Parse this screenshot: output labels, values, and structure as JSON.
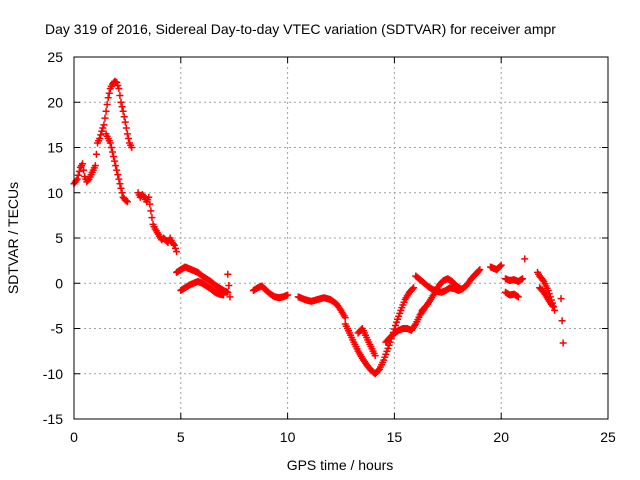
{
  "chart_data": {
    "type": "scatter",
    "title": "Day 319 of 2016, Sidereal Day-to-day VTEC variation (SDTVAR) for receiver ampr",
    "xlabel": "GPS time / hours",
    "ylabel": "SDTVAR / TECUs",
    "xlim": [
      0,
      25
    ],
    "ylim": [
      -15,
      25
    ],
    "xticks": [
      "0",
      "5",
      "10",
      "15",
      "20",
      "25"
    ],
    "yticks": [
      "-15",
      "-10",
      "-5",
      "0",
      "5",
      "10",
      "15",
      "20",
      "25"
    ],
    "grid": true,
    "marker": "+",
    "marker_color": "#ff0000",
    "series": [
      {
        "x": [
          0.0,
          0.15,
          0.3,
          0.4,
          0.5,
          0.6,
          0.7,
          0.8,
          0.9,
          1.0,
          1.1,
          1.2,
          1.3,
          1.4,
          1.5,
          1.6,
          1.7,
          1.8,
          1.9,
          2.0,
          2.1,
          2.2,
          2.3,
          2.4,
          2.5,
          2.6,
          2.7
        ],
        "y": [
          11.0,
          11.5,
          12.8,
          13.2,
          11.8,
          11.2,
          11.5,
          12.0,
          12.5,
          13.0,
          15.5,
          16.0,
          16.8,
          17.5,
          19.0,
          20.5,
          21.5,
          22.0,
          22.3,
          22.2,
          21.5,
          20.0,
          19.0,
          17.8,
          16.5,
          15.5,
          15.0
        ]
      },
      {
        "x": [
          1.5,
          1.6,
          1.7,
          1.8,
          1.9,
          2.0,
          2.1,
          2.2,
          2.3,
          2.4,
          2.5
        ],
        "y": [
          16.5,
          16.0,
          15.5,
          14.5,
          13.5,
          12.5,
          11.5,
          10.5,
          9.5,
          9.2,
          9.0
        ]
      },
      {
        "x": [
          3.0,
          3.1,
          3.2,
          3.3,
          3.4,
          3.5,
          3.7,
          3.8,
          4.0,
          4.1,
          4.2,
          4.4,
          4.5,
          4.6,
          4.7,
          4.8
        ],
        "y": [
          10.0,
          9.5,
          9.8,
          9.5,
          9.0,
          9.5,
          6.5,
          6.0,
          5.2,
          4.8,
          5.0,
          4.5,
          5.0,
          4.5,
          4.2,
          3.5
        ]
      },
      {
        "x": [
          4.8,
          5.0,
          5.2,
          5.4,
          5.6,
          5.8,
          6.0,
          6.2,
          6.4,
          6.6,
          6.8,
          7.0,
          7.2
        ],
        "y": [
          1.2,
          1.5,
          1.8,
          1.6,
          1.4,
          1.2,
          0.8,
          0.5,
          0.2,
          -0.2,
          -0.5,
          -0.8,
          -1.0
        ]
      },
      {
        "x": [
          5.0,
          5.2,
          5.4,
          5.6,
          5.8,
          6.0,
          6.2,
          6.4,
          6.6,
          6.8,
          7.0
        ],
        "y": [
          -0.8,
          -0.5,
          -0.2,
          0.0,
          0.2,
          0.0,
          -0.3,
          -0.6,
          -1.0,
          -1.2,
          -1.3
        ]
      },
      {
        "x": [
          7.2,
          7.3
        ],
        "y": [
          1.0,
          -1.5
        ]
      },
      {
        "x": [
          8.4,
          8.6,
          8.8,
          9.0,
          9.2,
          9.4,
          9.6,
          9.8,
          10.0
        ],
        "y": [
          -0.8,
          -0.5,
          -0.3,
          -0.8,
          -1.2,
          -1.5,
          -1.6,
          -1.5,
          -1.3
        ]
      },
      {
        "x": [
          10.5,
          10.8,
          11.1,
          11.4,
          11.7,
          12.0,
          12.3,
          12.5,
          12.7
        ],
        "y": [
          -1.5,
          -1.8,
          -2.0,
          -1.8,
          -1.6,
          -1.8,
          -2.3,
          -3.0,
          -3.8
        ]
      },
      {
        "x": [
          12.7,
          12.9,
          13.1,
          13.3,
          13.5,
          13.7,
          13.9,
          14.1,
          14.3,
          14.5,
          14.7,
          14.9,
          15.1,
          15.3,
          15.5,
          15.7,
          15.9
        ],
        "y": [
          -4.5,
          -5.5,
          -6.5,
          -7.5,
          -8.3,
          -9.0,
          -9.6,
          -10.0,
          -9.5,
          -8.5,
          -7.2,
          -5.8,
          -4.3,
          -3.0,
          -1.8,
          -1.0,
          -0.5
        ]
      },
      {
        "x": [
          13.3,
          13.5,
          13.7,
          13.9,
          14.1
        ],
        "y": [
          -5.5,
          -5.0,
          -6.0,
          -7.0,
          -8.0
        ]
      },
      {
        "x": [
          14.6,
          14.8,
          15.0,
          15.2,
          15.4,
          15.6,
          15.8,
          16.0,
          16.2,
          16.4
        ],
        "y": [
          -6.5,
          -6.0,
          -5.5,
          -5.2,
          -5.0,
          -5.0,
          -5.2,
          -4.5,
          -3.5,
          -2.8
        ]
      },
      {
        "x": [
          16.0,
          16.2,
          16.4,
          16.6,
          16.8,
          17.0,
          17.2,
          17.4,
          17.6,
          17.8,
          18.0,
          18.2,
          18.4,
          18.6,
          18.8,
          19.0
        ],
        "y": [
          0.8,
          0.4,
          0.0,
          -0.4,
          -0.7,
          -0.9,
          -1.0,
          -0.8,
          -0.5,
          -0.6,
          -0.8,
          -0.6,
          -0.2,
          0.5,
          1.0,
          1.5
        ]
      },
      {
        "x": [
          16.3,
          16.5,
          16.7,
          16.9,
          17.1,
          17.3,
          17.5,
          17.7,
          17.9,
          18.1
        ],
        "y": [
          -3.0,
          -2.5,
          -1.8,
          -1.0,
          -0.2,
          0.3,
          0.5,
          0.2,
          -0.3,
          -0.6
        ]
      },
      {
        "x": [
          19.5,
          19.8,
          20.0
        ],
        "y": [
          1.8,
          1.5,
          2.0
        ]
      },
      {
        "x": [
          20.2,
          20.4,
          20.6,
          20.8,
          21.0
        ],
        "y": [
          0.5,
          0.3,
          0.4,
          0.2,
          0.5
        ]
      },
      {
        "x": [
          20.2,
          20.4,
          20.6,
          20.8
        ],
        "y": [
          -1.0,
          -1.3,
          -1.2,
          -1.5
        ]
      },
      {
        "x": [
          21.1
        ],
        "y": [
          2.7
        ]
      },
      {
        "x": [
          21.7,
          21.8,
          21.9,
          22.0,
          22.1,
          22.2,
          22.3,
          22.4,
          22.5
        ],
        "y": [
          1.2,
          0.8,
          0.5,
          0.2,
          -0.3,
          -0.8,
          -1.5,
          -2.2,
          -3.0
        ]
      },
      {
        "x": [
          21.8,
          22.0,
          22.2,
          22.4
        ],
        "y": [
          -0.5,
          -1.0,
          -1.8,
          -2.5
        ]
      },
      {
        "x": [
          22.8,
          22.9
        ],
        "y": [
          -1.7,
          -6.6
        ]
      }
    ]
  }
}
